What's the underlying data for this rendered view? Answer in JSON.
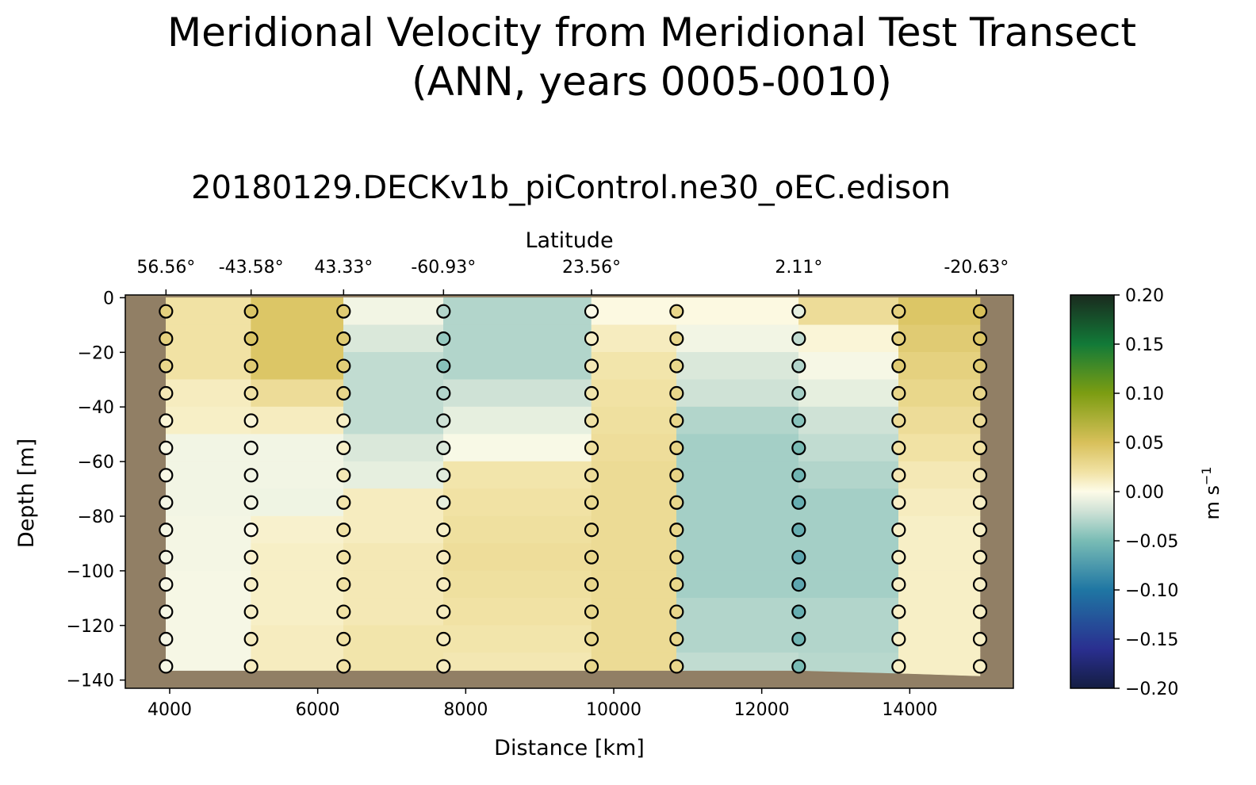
{
  "chart_data": {
    "type": "heatmap",
    "title_line1": "Meridional Velocity from Meridional Test Transect",
    "title_line2": "(ANN, years 0005-0010)",
    "subtitle": "20180129.DECKv1b_piControl.ne30_oEC.edison",
    "xlabel": "Distance [km]",
    "ylabel": "Depth [m]",
    "top_axis_label": "Latitude",
    "colorbar_label": "m s",
    "colorbar_label_exp": "−1",
    "xlim": [
      3400,
      15400
    ],
    "ylim": [
      -143,
      1
    ],
    "x_ticks": [
      4000,
      6000,
      8000,
      10000,
      12000,
      14000
    ],
    "x_tick_labels": [
      "4000",
      "6000",
      "8000",
      "10000",
      "12000",
      "14000"
    ],
    "y_ticks": [
      0,
      -20,
      -40,
      -60,
      -80,
      -100,
      -120,
      -140
    ],
    "y_tick_labels": [
      "0",
      "−20",
      "−40",
      "−60",
      "−80",
      "−100",
      "−120",
      "−140"
    ],
    "lat_ticks": [
      {
        "x": 3950,
        "label": "56.56°"
      },
      {
        "x": 5100,
        "label": "-43.58°"
      },
      {
        "x": 6350,
        "label": "43.33°"
      },
      {
        "x": 7700,
        "label": "-60.93°"
      },
      {
        "x": 9700,
        "label": "23.56°"
      },
      {
        "x": 12500,
        "label": "2.11°"
      },
      {
        "x": 14900,
        "label": "-20.63°"
      }
    ],
    "colorbar_ticks": [
      0.2,
      0.15,
      0.1,
      0.05,
      0.0,
      -0.05,
      -0.1,
      -0.15,
      -0.2
    ],
    "colorbar_tick_labels": [
      "0.20",
      "0.15",
      "0.10",
      "0.05",
      "0.00",
      "−0.05",
      "−0.10",
      "−0.15",
      "−0.20"
    ],
    "vmin": -0.2,
    "vmax": 0.2,
    "depths": [
      -5,
      -15,
      -25,
      -35,
      -45,
      -55,
      -65,
      -75,
      -85,
      -95,
      -105,
      -115,
      -125,
      -135
    ],
    "stations": [
      {
        "x": 3950,
        "bottom": -136.5,
        "values": [
          0.035,
          0.035,
          0.03,
          0.015,
          0.005,
          -0.002,
          -0.002,
          -0.004,
          -0.004,
          -0.004,
          -0.003,
          -0.003,
          -0.003,
          -0.003
        ]
      },
      {
        "x": 5100,
        "bottom": -136.5,
        "values": [
          0.045,
          0.045,
          0.04,
          0.02,
          0.005,
          -0.005,
          -0.005,
          -0.004,
          0.0,
          0.008,
          0.01,
          0.01,
          0.012,
          0.012
        ]
      },
      {
        "x": 6350,
        "bottom": -136.5,
        "values": [
          0.04,
          0.04,
          0.038,
          0.03,
          0.01,
          0.01,
          0.015,
          0.018,
          0.02,
          0.02,
          0.02,
          0.02,
          0.02,
          0.02
        ]
      },
      {
        "x": 7700,
        "bottom": -136.5,
        "values": [
          -0.03,
          -0.04,
          -0.045,
          -0.03,
          -0.02,
          -0.015,
          -0.012,
          -0.01,
          0.01,
          0.012,
          0.012,
          0.012,
          0.012,
          0.012
        ]
      },
      {
        "x": 9700,
        "bottom": -136.5,
        "values": [
          0.0,
          0.01,
          0.015,
          0.018,
          0.02,
          0.022,
          0.025,
          0.028,
          0.03,
          0.03,
          0.03,
          0.03,
          0.03,
          0.03
        ]
      },
      {
        "x": 10850,
        "bottom": -136.5,
        "values": [
          0.03,
          0.03,
          0.03,
          0.03,
          0.03,
          0.032,
          0.032,
          0.03,
          0.03,
          0.03,
          0.03,
          0.03,
          0.03,
          0.03
        ]
      },
      {
        "x": 12500,
        "bottom": -136.5,
        "values": [
          -0.01,
          -0.025,
          -0.03,
          -0.035,
          -0.045,
          -0.05,
          -0.055,
          -0.06,
          -0.06,
          -0.065,
          -0.065,
          -0.06,
          -0.055,
          -0.05
        ]
      },
      {
        "x": 13850,
        "bottom": -137.5,
        "values": [
          0.035,
          0.035,
          0.04,
          0.03,
          0.025,
          0.02,
          0.015,
          0.01,
          0.01,
          0.01,
          0.01,
          0.01,
          0.01,
          0.01
        ]
      },
      {
        "x": 14950,
        "bottom": -138.5,
        "values": [
          0.05,
          0.045,
          0.04,
          0.03,
          0.025,
          0.02,
          0.015,
          0.01,
          0.01,
          0.01,
          0.01,
          0.01,
          0.01,
          0.01
        ]
      }
    ],
    "segments": [
      {
        "x0": 3950,
        "x1": 5100,
        "values": [
          0.02,
          0.02,
          0.02,
          0.012,
          0.01,
          -0.005,
          -0.005,
          -0.005,
          -0.004,
          -0.004,
          -0.003,
          -0.003,
          -0.003,
          -0.003
        ]
      },
      {
        "x0": 5100,
        "x1": 6350,
        "values": [
          0.045,
          0.045,
          0.045,
          0.025,
          0.012,
          -0.005,
          -0.005,
          -0.006,
          0.008,
          0.01,
          0.01,
          0.01,
          0.012,
          0.012
        ]
      },
      {
        "x0": 6350,
        "x1": 7700,
        "values": [
          -0.005,
          -0.015,
          -0.025,
          -0.025,
          -0.025,
          -0.015,
          -0.01,
          0.012,
          0.012,
          0.015,
          0.015,
          0.015,
          0.018,
          0.018
        ]
      },
      {
        "x0": 7700,
        "x1": 9700,
        "values": [
          -0.03,
          -0.03,
          -0.03,
          -0.02,
          -0.01,
          -0.002,
          0.018,
          0.02,
          0.022,
          0.024,
          0.022,
          0.02,
          0.018,
          0.016
        ]
      },
      {
        "x0": 9700,
        "x1": 10850,
        "values": [
          0.002,
          0.012,
          0.018,
          0.02,
          0.022,
          0.024,
          0.026,
          0.026,
          0.026,
          0.026,
          0.026,
          0.026,
          0.026,
          0.026
        ]
      },
      {
        "x0": 10850,
        "x1": 12500,
        "values": [
          0.002,
          -0.005,
          -0.015,
          -0.02,
          -0.03,
          -0.035,
          -0.035,
          -0.035,
          -0.035,
          -0.035,
          -0.035,
          -0.03,
          -0.03,
          -0.025
        ]
      },
      {
        "x0": 12500,
        "x1": 13850,
        "values": [
          0.025,
          0.005,
          -0.003,
          -0.01,
          -0.02,
          -0.025,
          -0.03,
          -0.035,
          -0.035,
          -0.035,
          -0.035,
          -0.03,
          -0.03,
          -0.028
        ]
      },
      {
        "x0": 13850,
        "x1": 14950,
        "values": [
          0.045,
          0.04,
          0.035,
          0.03,
          0.025,
          0.02,
          0.015,
          0.012,
          0.01,
          0.01,
          0.01,
          0.01,
          0.01,
          0.01
        ]
      }
    ]
  }
}
